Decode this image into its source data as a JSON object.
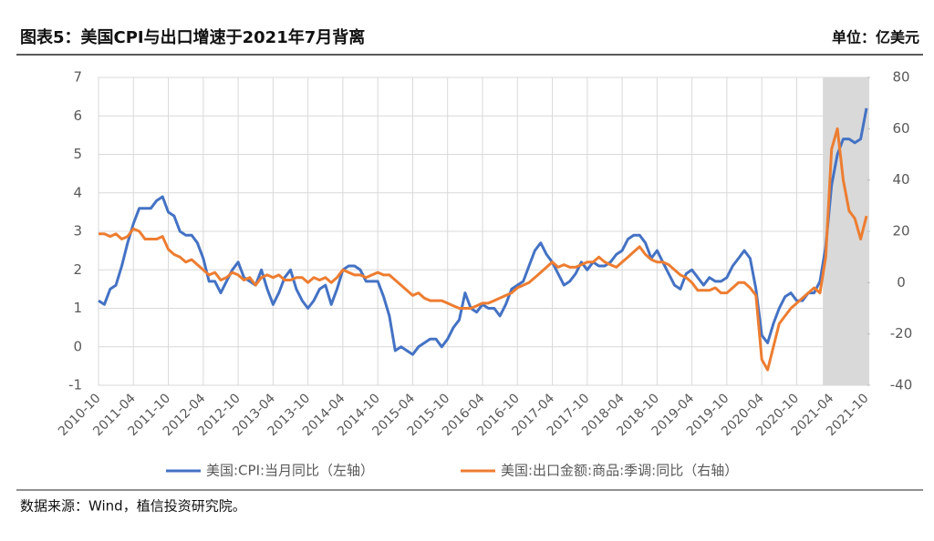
{
  "header": {
    "title": "图表5：美国CPI与出口增速于2021年7月背离",
    "unit": "单位：亿美元"
  },
  "chart_data": {
    "type": "line",
    "categories": [
      "2010-10",
      null,
      null,
      null,
      null,
      null,
      "2011-04",
      null,
      null,
      null,
      null,
      null,
      "2011-10",
      null,
      null,
      null,
      null,
      null,
      "2012-04",
      null,
      null,
      null,
      null,
      null,
      "2012-10",
      null,
      null,
      null,
      null,
      null,
      "2013-04",
      null,
      null,
      null,
      null,
      null,
      "2013-10",
      null,
      null,
      null,
      null,
      null,
      "2014-04",
      null,
      null,
      null,
      null,
      null,
      "2014-10",
      null,
      null,
      null,
      null,
      null,
      "2015-04",
      null,
      null,
      null,
      null,
      null,
      "2015-10",
      null,
      null,
      null,
      null,
      null,
      "2016-04",
      null,
      null,
      null,
      null,
      null,
      "2016-10",
      null,
      null,
      null,
      null,
      null,
      "2017-04",
      null,
      null,
      null,
      null,
      null,
      "2017-10",
      null,
      null,
      null,
      null,
      null,
      "2018-04",
      null,
      null,
      null,
      null,
      null,
      "2018-10",
      null,
      null,
      null,
      null,
      null,
      "2019-04",
      null,
      null,
      null,
      null,
      null,
      "2019-10",
      null,
      null,
      null,
      null,
      null,
      "2020-04",
      null,
      null,
      null,
      null,
      null,
      "2020-10",
      null,
      null,
      null,
      null,
      null,
      "2021-04",
      null,
      null,
      null,
      null,
      null,
      "2021-10"
    ],
    "series": [
      {
        "name": "美国:CPI:当月同比（左轴）",
        "color": "#4472c4",
        "axis": "y",
        "values": [
          1.2,
          1.1,
          1.5,
          1.6,
          2.1,
          2.7,
          3.2,
          3.6,
          3.6,
          3.6,
          3.8,
          3.9,
          3.5,
          3.4,
          3.0,
          2.9,
          2.9,
          2.7,
          2.3,
          1.7,
          1.7,
          1.4,
          1.7,
          2.0,
          2.2,
          1.8,
          1.7,
          1.6,
          2.0,
          1.5,
          1.1,
          1.4,
          1.8,
          2.0,
          1.5,
          1.2,
          1.0,
          1.2,
          1.5,
          1.6,
          1.1,
          1.5,
          2.0,
          2.1,
          2.1,
          2.0,
          1.7,
          1.7,
          1.7,
          1.3,
          0.8,
          -0.1,
          0.0,
          -0.1,
          -0.2,
          0.0,
          0.1,
          0.2,
          0.2,
          0.0,
          0.2,
          0.5,
          0.7,
          1.4,
          1.0,
          0.9,
          1.1,
          1.0,
          1.0,
          0.8,
          1.1,
          1.5,
          1.6,
          1.7,
          2.1,
          2.5,
          2.7,
          2.4,
          2.2,
          1.9,
          1.6,
          1.7,
          1.9,
          2.2,
          2.0,
          2.2,
          2.1,
          2.1,
          2.2,
          2.4,
          2.5,
          2.8,
          2.9,
          2.9,
          2.7,
          2.3,
          2.5,
          2.2,
          1.9,
          1.6,
          1.5,
          1.9,
          2.0,
          1.8,
          1.6,
          1.8,
          1.7,
          1.7,
          1.8,
          2.1,
          2.3,
          2.5,
          2.3,
          1.5,
          0.3,
          0.1,
          0.6,
          1.0,
          1.3,
          1.4,
          1.2,
          1.2,
          1.4,
          1.4,
          1.7,
          2.6,
          4.2,
          5.0,
          5.4,
          5.4,
          5.3,
          5.4,
          6.2
        ]
      },
      {
        "name": "美国:出口金额:商品:季调:同比（右轴）",
        "color": "#ed7d31",
        "axis": "y2",
        "values": [
          19,
          19,
          18,
          19,
          17,
          18,
          21,
          20,
          17,
          17,
          17,
          18,
          13,
          11,
          10,
          8,
          9,
          7,
          5,
          3,
          4,
          1,
          2,
          4,
          3,
          1,
          2,
          -1,
          2,
          3,
          2,
          3,
          1,
          1,
          2,
          2,
          0,
          2,
          1,
          2,
          0,
          2,
          5,
          4,
          3,
          3,
          2,
          3,
          4,
          3,
          3,
          1,
          -1,
          -3,
          -5,
          -4,
          -6,
          -7,
          -7,
          -7,
          -8,
          -9,
          -10,
          -10,
          -10,
          -9,
          -8,
          -8,
          -7,
          -6,
          -5,
          -4,
          -2,
          -1,
          0,
          2,
          4,
          6,
          8,
          6,
          7,
          6,
          6,
          7,
          8,
          8,
          10,
          8,
          7,
          6,
          8,
          10,
          12,
          14,
          11,
          9,
          8,
          8,
          7,
          5,
          3,
          2,
          0,
          -3,
          -3,
          -3,
          -2,
          -4,
          -4,
          -2,
          0,
          0,
          -2,
          -5,
          -30,
          -34,
          -25,
          -16,
          -13,
          -10,
          -8,
          -6,
          -4,
          -2,
          -4,
          10,
          52,
          60,
          40,
          28,
          25,
          17,
          26
        ]
      }
    ],
    "ylim": [
      -1,
      7
    ],
    "yticks": [
      -1,
      0,
      1,
      2,
      3,
      4,
      5,
      6,
      7
    ],
    "y2lim": [
      -40,
      80
    ],
    "y2ticks": [
      -40,
      -20,
      0,
      20,
      40,
      60,
      80
    ],
    "grid": true,
    "legend": "bottom"
  },
  "footer": {
    "source": "数据来源：Wind，植信投资研究院。"
  }
}
